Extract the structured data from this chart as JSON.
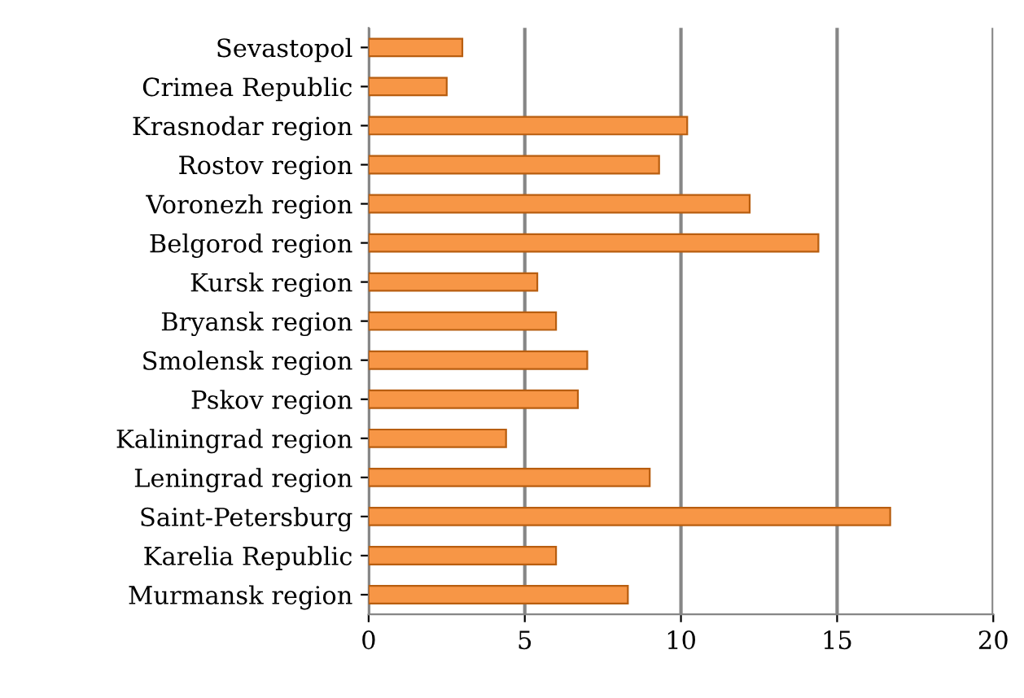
{
  "chart_data": {
    "type": "bar",
    "orientation": "horizontal",
    "categories": [
      "Sevastopol",
      "Crimea Republic",
      "Krasnodar region",
      "Rostov region",
      "Voronezh region",
      "Belgorod region",
      "Kursk region",
      "Bryansk region",
      "Smolensk region",
      "Pskov region",
      "Kaliningrad region",
      "Leningrad region",
      "Saint-Petersburg",
      "Karelia Republic",
      "Murmansk region"
    ],
    "values": [
      3.0,
      2.5,
      10.2,
      9.3,
      12.2,
      14.4,
      5.4,
      6.0,
      7.0,
      6.7,
      4.4,
      9.0,
      16.7,
      6.0,
      8.3
    ],
    "color": "#f79646",
    "xlim": [
      0,
      20
    ],
    "xticks": [
      0,
      5,
      10,
      15,
      20
    ],
    "grid": "x",
    "legend": false
  }
}
